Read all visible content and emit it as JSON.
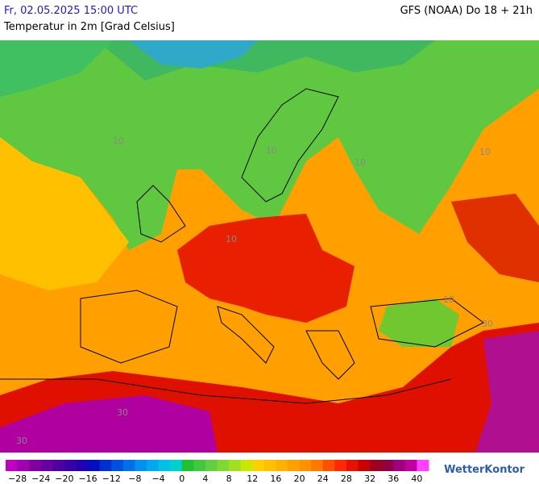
{
  "header": {
    "valid_time": "Fr, 02.05.2025 15:00 UTC",
    "model": "GFS (NOAA) Do 18 + 21h",
    "parameter": "Temperatur in 2m [Grad Celsius]"
  },
  "map": {
    "contour_labels": [
      "10",
      "10",
      "10",
      "10",
      "10",
      "10",
      "30",
      "30",
      "30"
    ]
  },
  "legend": {
    "ticks": [
      "−28",
      "−24",
      "−20",
      "−16",
      "−12",
      "−8",
      "−4",
      "0",
      "4",
      "8",
      "12",
      "16",
      "20",
      "24",
      "28",
      "32",
      "36",
      "40"
    ],
    "colors": [
      "#c000c0",
      "#a000b0",
      "#8000a0",
      "#6a00a0",
      "#5000a0",
      "#3a00a8",
      "#2000b0",
      "#0010c0",
      "#0030d0",
      "#0050e0",
      "#0070e8",
      "#0090f0",
      "#00a8f0",
      "#00c0e8",
      "#00d0d0",
      "#20c030",
      "#40c840",
      "#60d040",
      "#80d830",
      "#a0e020",
      "#c8e800",
      "#ffd000",
      "#ffc000",
      "#ffb000",
      "#ffa000",
      "#ff9000",
      "#ff7800",
      "#ff5000",
      "#ff2800",
      "#e81000",
      "#c80000",
      "#a00020",
      "#900040",
      "#a00080",
      "#c000a0",
      "#ff40ff"
    ]
  },
  "logo": "WetterKontor"
}
